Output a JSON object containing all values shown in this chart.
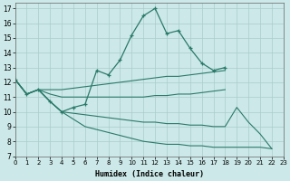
{
  "xlabel": "Humidex (Indice chaleur)",
  "xlim": [
    0,
    23
  ],
  "ylim": [
    7,
    17.4
  ],
  "yticks": [
    7,
    8,
    9,
    10,
    11,
    12,
    13,
    14,
    15,
    16,
    17
  ],
  "xticks": [
    0,
    1,
    2,
    3,
    4,
    5,
    6,
    7,
    8,
    9,
    10,
    11,
    12,
    13,
    14,
    15,
    16,
    17,
    18,
    19,
    20,
    21,
    22,
    23
  ],
  "bg_color": "#cce8e8",
  "line_color": "#2a7a6a",
  "grid_color": "#aacccc",
  "curve1_x": [
    0,
    1,
    2,
    3,
    4,
    5,
    6,
    7,
    8,
    9,
    10,
    11,
    12,
    13,
    14,
    15,
    16,
    17,
    18
  ],
  "curve1_y": [
    12.2,
    11.2,
    11.5,
    10.7,
    10.0,
    10.3,
    10.5,
    12.8,
    12.5,
    13.5,
    15.2,
    16.5,
    17.0,
    15.3,
    15.5,
    14.3,
    13.3,
    12.8,
    13.0
  ],
  "curve2_x": [
    0,
    1,
    2,
    3,
    4,
    5,
    6,
    7,
    8,
    9,
    10,
    11,
    12,
    13,
    14,
    15,
    16,
    17,
    18
  ],
  "curve2_y": [
    12.2,
    11.2,
    11.5,
    11.5,
    11.5,
    11.6,
    11.7,
    11.8,
    11.9,
    12.0,
    12.1,
    12.2,
    12.3,
    12.4,
    12.4,
    12.5,
    12.6,
    12.7,
    12.8
  ],
  "curve3_x": [
    0,
    1,
    2,
    3,
    4,
    5,
    6,
    7,
    8,
    9,
    10,
    11,
    12,
    13,
    14,
    15,
    16,
    17,
    18
  ],
  "curve3_y": [
    12.2,
    11.2,
    11.5,
    11.2,
    11.0,
    11.0,
    11.0,
    11.0,
    11.0,
    11.0,
    11.0,
    11.0,
    11.1,
    11.1,
    11.2,
    11.2,
    11.3,
    11.4,
    11.5
  ],
  "curve4_x": [
    0,
    1,
    2,
    3,
    4,
    5,
    6,
    7,
    8,
    9,
    10,
    11,
    12,
    13,
    14,
    15,
    16,
    17,
    18,
    19,
    20,
    21,
    22
  ],
  "curve4_y": [
    12.2,
    11.2,
    11.5,
    10.7,
    10.0,
    9.9,
    9.8,
    9.7,
    9.6,
    9.5,
    9.4,
    9.3,
    9.3,
    9.2,
    9.2,
    9.1,
    9.1,
    9.0,
    9.0,
    10.3,
    9.3,
    8.5,
    7.5
  ],
  "curve5_x": [
    0,
    1,
    2,
    3,
    4,
    5,
    6,
    7,
    8,
    9,
    10,
    11,
    12,
    13,
    14,
    15,
    16,
    17,
    18,
    19,
    20,
    21,
    22
  ],
  "curve5_y": [
    12.2,
    11.2,
    11.5,
    10.7,
    10.0,
    9.5,
    9.0,
    8.8,
    8.6,
    8.4,
    8.2,
    8.0,
    7.9,
    7.8,
    7.8,
    7.7,
    7.7,
    7.6,
    7.6,
    7.6,
    7.6,
    7.6,
    7.5
  ]
}
